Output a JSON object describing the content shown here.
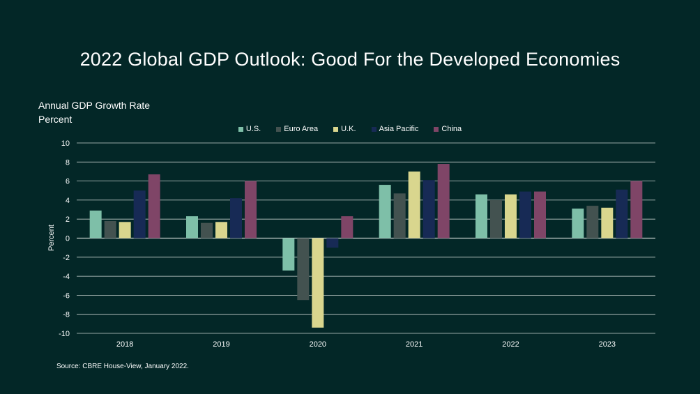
{
  "title": "2022 Global GDP Outlook: Good For the Developed Economies",
  "subtitle_line1": "Annual GDP Growth Rate",
  "subtitle_line2": "Percent",
  "source": "Source: CBRE House-View, January 2022.",
  "chart_data": {
    "type": "bar",
    "title": "2022 Global GDP Outlook: Good For the Developed Economies",
    "ylabel": "Percent",
    "xlabel": "",
    "ylim": [
      -10,
      10
    ],
    "yticks": [
      10,
      8,
      6,
      4,
      2,
      0,
      -2,
      -4,
      -6,
      -8,
      -10
    ],
    "grid": true,
    "legend_position": "top-center",
    "categories": [
      "2018",
      "2019",
      "2020",
      "2021",
      "2022",
      "2023"
    ],
    "series": [
      {
        "name": "U.S.",
        "color": "#7ebfa8",
        "values": [
          2.9,
          2.3,
          -3.4,
          5.6,
          4.6,
          3.1
        ]
      },
      {
        "name": "Euro Area",
        "color": "#435250",
        "values": [
          1.8,
          1.6,
          -6.5,
          4.7,
          4.0,
          3.4
        ]
      },
      {
        "name": "U.K.",
        "color": "#d9d68e",
        "values": [
          1.7,
          1.7,
          -9.4,
          7.0,
          4.6,
          3.2
        ]
      },
      {
        "name": "Asia Pacific",
        "color": "#172a55",
        "values": [
          5.0,
          4.2,
          -1.0,
          6.1,
          4.9,
          5.1
        ]
      },
      {
        "name": "China",
        "color": "#7f4567",
        "values": [
          6.7,
          6.0,
          2.3,
          7.8,
          4.9,
          6.0
        ]
      }
    ]
  }
}
